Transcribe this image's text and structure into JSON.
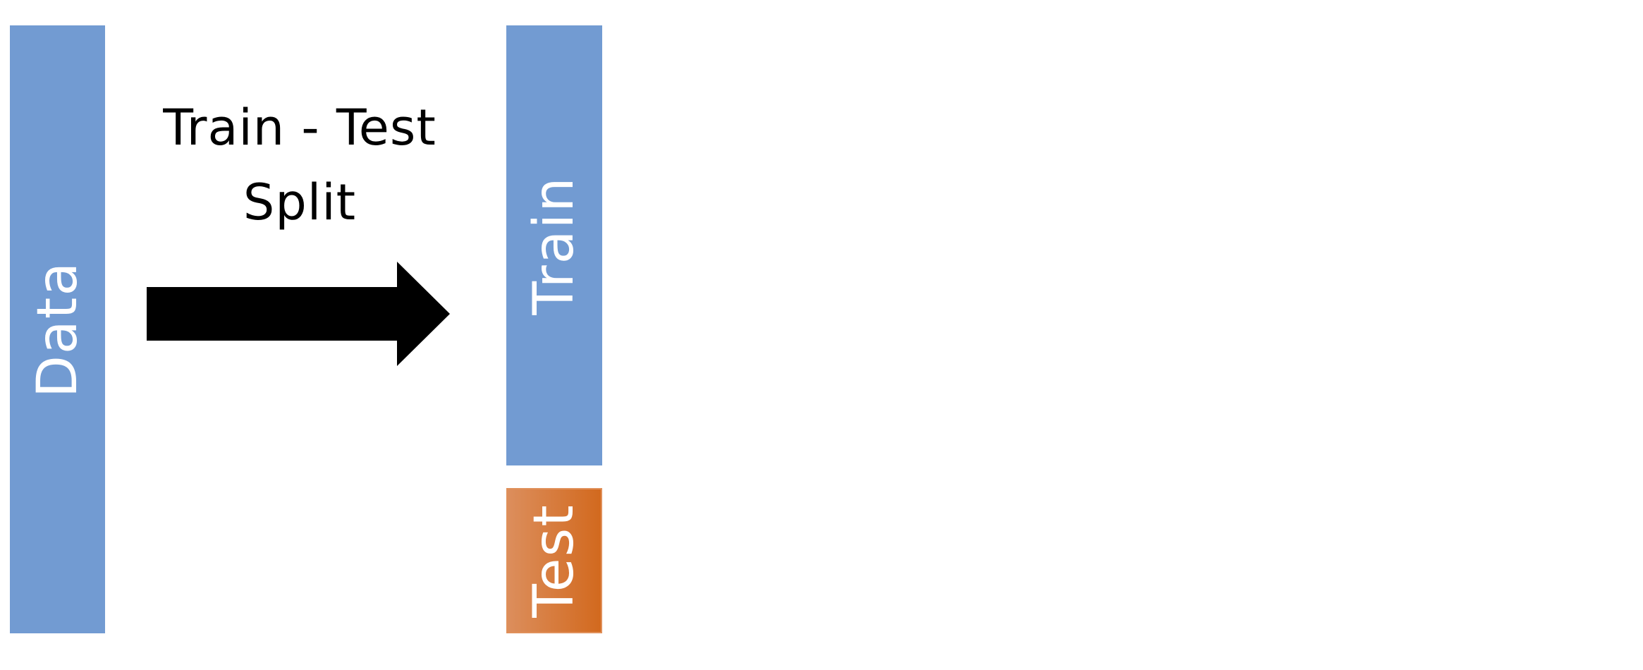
{
  "blocks": {
    "data": {
      "label": "Data",
      "color": "#729bd2"
    },
    "train": {
      "label": "Train",
      "color": "#729bd2"
    },
    "test": {
      "label": "Test",
      "color_start": "#dc8e5c",
      "color_end": "#d2691e"
    }
  },
  "arrow": {
    "line1": "Train - Test",
    "line2": "Split",
    "color": "#000000"
  }
}
